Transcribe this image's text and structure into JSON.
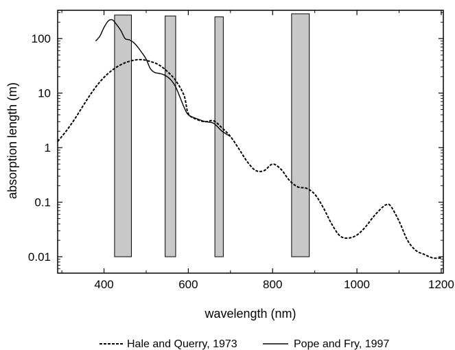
{
  "chart_data": {
    "type": "line",
    "title": "",
    "xlabel": "wavelength (nm)",
    "ylabel": "absorption length (m)",
    "xlim": [
      290,
      1205
    ],
    "ylim": [
      0.005,
      330
    ],
    "yscale": "log",
    "x_ticks": [
      400,
      600,
      800,
      1000,
      1200
    ],
    "x_tick_labels": [
      "400",
      "600",
      "800",
      "1000",
      "1200"
    ],
    "y_ticks": [
      0.01,
      0.1,
      1,
      10,
      100
    ],
    "y_tick_labels": [
      "0.01",
      "0.1",
      "1",
      "10",
      "100"
    ],
    "grid": false,
    "legend_position": "bottom",
    "series": [
      {
        "name": "Hale and Querry, 1973",
        "style": "dashed",
        "color": "#000000",
        "x": [
          290,
          310,
          330,
          350,
          370,
          390,
          410,
          430,
          450,
          470,
          490,
          510,
          530,
          550,
          570,
          590,
          600,
          620,
          640,
          660,
          680,
          700,
          720,
          740,
          760,
          780,
          800,
          820,
          840,
          860,
          880,
          900,
          920,
          940,
          960,
          980,
          1000,
          1020,
          1040,
          1060,
          1070,
          1080,
          1100,
          1120,
          1140,
          1160,
          1180,
          1200
        ],
        "y": [
          1.3,
          2.0,
          3.3,
          5.8,
          10,
          16,
          23,
          30,
          36,
          40,
          41,
          38,
          33,
          25,
          17,
          9,
          4.2,
          3.3,
          3.0,
          3.1,
          2.3,
          1.6,
          0.95,
          0.55,
          0.38,
          0.38,
          0.5,
          0.4,
          0.25,
          0.19,
          0.18,
          0.14,
          0.08,
          0.04,
          0.024,
          0.022,
          0.025,
          0.035,
          0.055,
          0.08,
          0.09,
          0.085,
          0.045,
          0.02,
          0.013,
          0.011,
          0.0095,
          0.0095
        ]
      },
      {
        "name": "Pope and Fry, 1997",
        "style": "solid",
        "color": "#000000",
        "x": [
          380,
          390,
          400,
          410,
          420,
          430,
          440,
          450,
          460,
          470,
          480,
          490,
          500,
          510,
          520,
          530,
          540,
          550,
          560,
          570,
          580,
          590,
          600,
          620,
          640,
          660,
          680,
          700
        ],
        "y": [
          90,
          110,
          160,
          210,
          220,
          180,
          140,
          100,
          95,
          85,
          70,
          55,
          42,
          28,
          24,
          23,
          22,
          20,
          17,
          13,
          8.5,
          5.5,
          4.0,
          3.4,
          3.0,
          2.8,
          2.0,
          1.6
        ]
      }
    ],
    "bands": [
      {
        "x_start": 425,
        "x_end": 465,
        "y_bottom": 0.01,
        "y_top": 270
      },
      {
        "x_start": 545,
        "x_end": 570,
        "y_bottom": 0.01,
        "y_top": 260
      },
      {
        "x_start": 663,
        "x_end": 683,
        "y_bottom": 0.01,
        "y_top": 250
      },
      {
        "x_start": 845,
        "x_end": 887,
        "y_bottom": 0.01,
        "y_top": 285
      }
    ],
    "band_color": "#c8c8c8"
  }
}
